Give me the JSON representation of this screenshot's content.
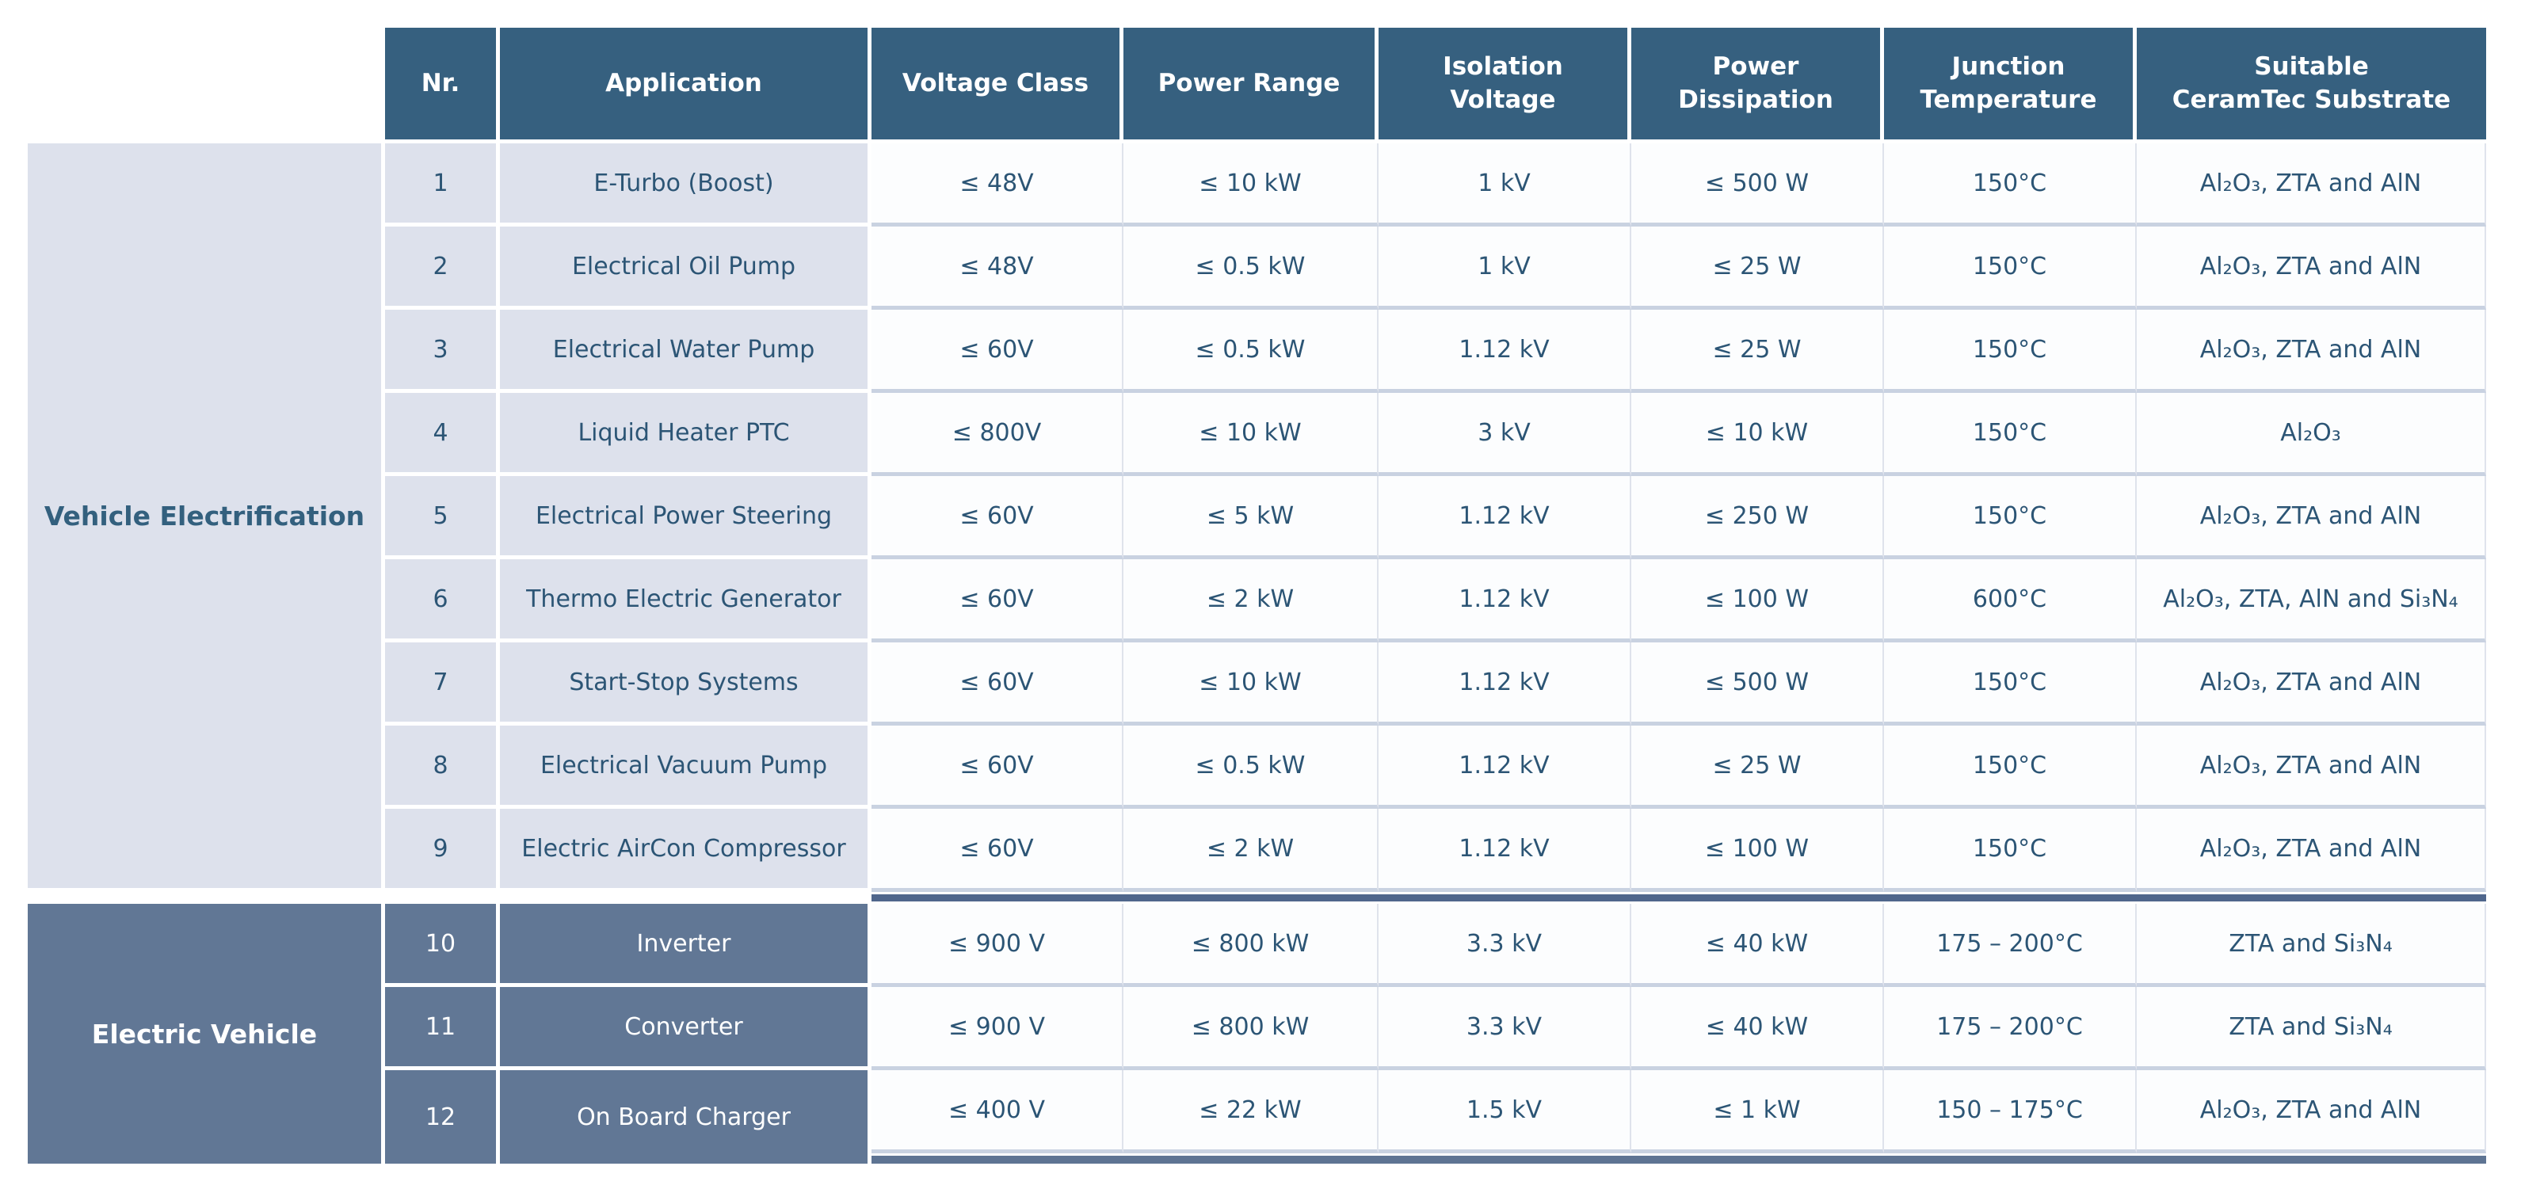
{
  "table": {
    "headers": {
      "nr": "Nr.",
      "application": "Application",
      "voltage_class": "Voltage Class",
      "power_range": "Power Range",
      "isolation_voltage": "Isolation\nVoltage",
      "power_dissipation": "Power\nDissipation",
      "junction_temperature": "Junction\nTemperature",
      "substrate": "Suitable\nCeramTec Substrate"
    },
    "groups": [
      {
        "label": "Vehicle Electrification",
        "rows": [
          {
            "nr": "1",
            "application": "E-Turbo (Boost)",
            "voltage_class": "≤ 48V",
            "power_range": "≤ 10 kW",
            "isolation_voltage": "1 kV",
            "power_dissipation": "≤ 500 W",
            "junction_temperature": "150°C",
            "substrate": "Al₂O₃, ZTA and AlN"
          },
          {
            "nr": "2",
            "application": "Electrical Oil Pump",
            "voltage_class": "≤ 48V",
            "power_range": "≤ 0.5 kW",
            "isolation_voltage": "1 kV",
            "power_dissipation": "≤ 25 W",
            "junction_temperature": "150°C",
            "substrate": "Al₂O₃, ZTA and AlN"
          },
          {
            "nr": "3",
            "application": "Electrical Water Pump",
            "voltage_class": "≤ 60V",
            "power_range": "≤ 0.5 kW",
            "isolation_voltage": "1.12 kV",
            "power_dissipation": "≤ 25 W",
            "junction_temperature": "150°C",
            "substrate": "Al₂O₃, ZTA and AlN"
          },
          {
            "nr": "4",
            "application": "Liquid Heater PTC",
            "voltage_class": "≤ 800V",
            "power_range": "≤ 10 kW",
            "isolation_voltage": "3 kV",
            "power_dissipation": "≤ 10 kW",
            "junction_temperature": "150°C",
            "substrate": "Al₂O₃"
          },
          {
            "nr": "5",
            "application": "Electrical Power Steering",
            "voltage_class": "≤ 60V",
            "power_range": "≤ 5 kW",
            "isolation_voltage": "1.12 kV",
            "power_dissipation": "≤ 250 W",
            "junction_temperature": "150°C",
            "substrate": "Al₂O₃, ZTA and AlN"
          },
          {
            "nr": "6",
            "application": "Thermo Electric Generator",
            "voltage_class": "≤ 60V",
            "power_range": "≤ 2 kW",
            "isolation_voltage": "1.12 kV",
            "power_dissipation": "≤ 100 W",
            "junction_temperature": "600°C",
            "substrate": "Al₂O₃, ZTA, AlN and Si₃N₄"
          },
          {
            "nr": "7",
            "application": "Start-Stop Systems",
            "voltage_class": "≤ 60V",
            "power_range": "≤ 10 kW",
            "isolation_voltage": "1.12 kV",
            "power_dissipation": "≤ 500 W",
            "junction_temperature": "150°C",
            "substrate": "Al₂O₃, ZTA and AlN"
          },
          {
            "nr": "8",
            "application": "Electrical Vacuum Pump",
            "voltage_class": "≤ 60V",
            "power_range": "≤ 0.5 kW",
            "isolation_voltage": "1.12 kV",
            "power_dissipation": "≤ 25 W",
            "junction_temperature": "150°C",
            "substrate": "Al₂O₃, ZTA and AlN"
          },
          {
            "nr": "9",
            "application": "Electric AirCon Compressor",
            "voltage_class": "≤ 60V",
            "power_range": "≤ 2 kW",
            "isolation_voltage": "1.12 kV",
            "power_dissipation": "≤ 100 W",
            "junction_temperature": "150°C",
            "substrate": "Al₂O₃, ZTA and AlN"
          }
        ]
      },
      {
        "label": "Electric Vehicle",
        "rows": [
          {
            "nr": "10",
            "application": "Inverter",
            "voltage_class": "≤ 900 V",
            "power_range": "≤ 800 kW",
            "isolation_voltage": "3.3 kV",
            "power_dissipation": "≤ 40 kW",
            "junction_temperature": "175 – 200°C",
            "substrate": "ZTA and Si₃N₄"
          },
          {
            "nr": "11",
            "application": "Converter",
            "voltage_class": "≤ 900 V",
            "power_range": "≤ 800 kW",
            "isolation_voltage": "3.3 kV",
            "power_dissipation": "≤ 40 kW",
            "junction_temperature": "175 – 200°C",
            "substrate": "ZTA and Si₃N₄"
          },
          {
            "nr": "12",
            "application": "On Board Charger",
            "voltage_class": "≤ 400 V",
            "power_range": "≤ 22 kW",
            "isolation_voltage": "1.5 kV",
            "power_dissipation": "≤ 1 kW",
            "junction_temperature": "150 – 175°C",
            "substrate": "Al₂O₃, ZTA and AlN"
          }
        ]
      }
    ]
  },
  "colors": {
    "header_bg": "#36607f",
    "group1_bg": "#dde1ec",
    "group2_bg": "#617795",
    "data_bg": "#fcfdfe",
    "text_blue": "#2c5575",
    "row_separator": "#c9d2e1",
    "group_separator_bar": "#4f668c",
    "bottom_bar": "#5e7493"
  }
}
